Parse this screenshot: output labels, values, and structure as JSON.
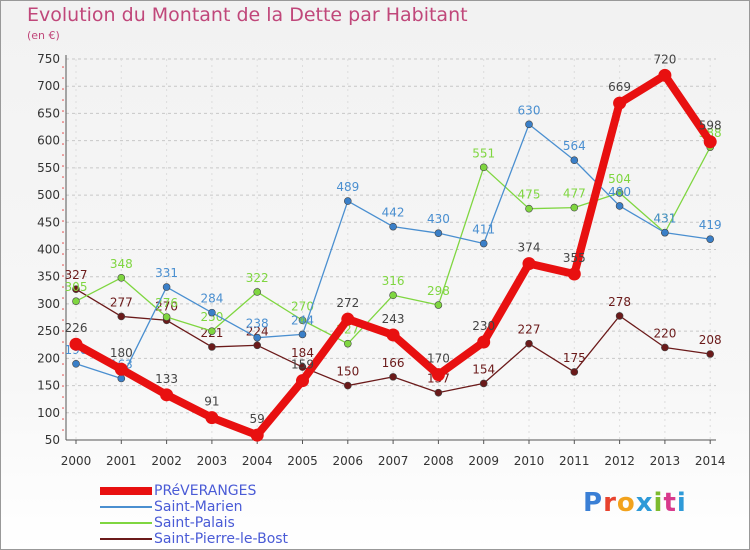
{
  "title": "Evolution du Montant de la Dette par Habitant",
  "unit": "(en €)",
  "logo_text": "Proxiti",
  "logo_colors": [
    "#3a7fd5",
    "#e8432e",
    "#f2a21c",
    "#2e9ad8",
    "#7dbb2e",
    "#d83a8c",
    "#2e9ad8"
  ],
  "chart_data": {
    "type": "line",
    "title": "Evolution du Montant de la Dette par Habitant",
    "ylabel": "(en €)",
    "xlabel": "",
    "ylim": [
      50,
      750
    ],
    "yticks": [
      50,
      100,
      150,
      200,
      250,
      300,
      350,
      400,
      450,
      500,
      550,
      600,
      650,
      700,
      750
    ],
    "x": [
      "2000",
      "2001",
      "2002",
      "2003",
      "2004",
      "2005",
      "2006",
      "2007",
      "2008",
      "2009",
      "2010",
      "2011",
      "2012",
      "2013",
      "2014"
    ],
    "grid": "horizontal dashed",
    "legend_position": "bottom-left",
    "series": [
      {
        "name": "PRéVERANGES",
        "color": "#e81010",
        "values": [
          226,
          180,
          133,
          91,
          59,
          159,
          272,
          243,
          170,
          230,
          374,
          355,
          669,
          720,
          598
        ]
      },
      {
        "name": "Saint-Marien",
        "color": "#4a8fd0",
        "values": [
          190,
          163,
          331,
          284,
          238,
          244,
          489,
          442,
          430,
          411,
          630,
          564,
          480,
          431,
          419
        ]
      },
      {
        "name": "Saint-Palais",
        "color": "#7fd640",
        "values": [
          305,
          348,
          276,
          250,
          322,
          270,
          227,
          316,
          298,
          551,
          475,
          477,
          504,
          431,
          588
        ]
      },
      {
        "name": "Saint-Pierre-le-Bost",
        "color": "#6b1a1a",
        "values": [
          327,
          277,
          270,
          221,
          224,
          184,
          150,
          166,
          137,
          154,
          227,
          175,
          278,
          220,
          208
        ]
      }
    ]
  }
}
